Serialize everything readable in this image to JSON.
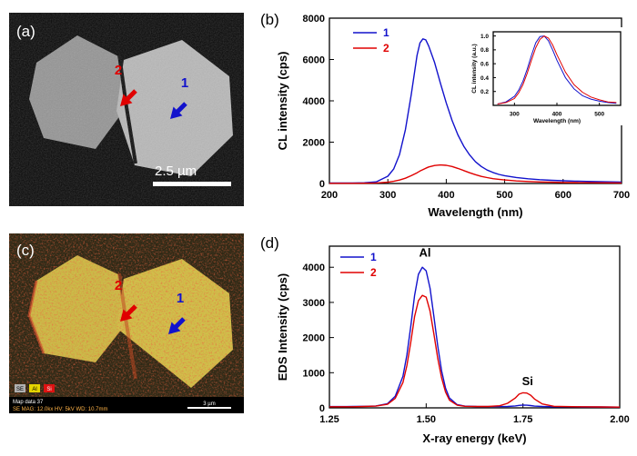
{
  "figure": {
    "panels": {
      "a": {
        "label": "(a)",
        "marker_1": {
          "label": "1",
          "color": "#1212cc"
        },
        "marker_2": {
          "label": "2",
          "color": "#e00000"
        },
        "scale_bar_label": "2.5 µm"
      },
      "b": {
        "label": "(b)"
      },
      "c": {
        "label": "(c)",
        "marker_1": {
          "label": "1",
          "color": "#1212cc"
        },
        "marker_2": {
          "label": "2",
          "color": "#e00000"
        },
        "footer_line_1": "Map data 37",
        "footer_line_2": "SE  MAG: 12.0kx  HV: 5kV  WD: 10.7mm",
        "footer_scale_label": "3 µm",
        "legend_chips": [
          {
            "label": "SE",
            "color": "#b0b0b0"
          },
          {
            "label": "Al",
            "color": "#e6d400"
          },
          {
            "label": "Si",
            "color": "#dd1111"
          }
        ]
      },
      "d": {
        "label": "(d)"
      }
    },
    "accent_colors": {
      "series1": "#1212cc",
      "series2": "#e00000"
    }
  },
  "chart_data": [
    {
      "id": "cl-spectrum",
      "type": "line",
      "title": "",
      "xlabel": "Wavelength (nm)",
      "ylabel": "CL intensity (cps)",
      "xlim": [
        200,
        700
      ],
      "ylim": [
        0,
        8000
      ],
      "xticks": [
        "200",
        "300",
        "400",
        "500",
        "600",
        "700"
      ],
      "yticks": [
        "0",
        "2000",
        "4000",
        "6000",
        "8000"
      ],
      "legend_position": "top-left",
      "series": [
        {
          "name": "1",
          "color": "#1212cc",
          "x": [
            200,
            220,
            240,
            260,
            280,
            300,
            310,
            320,
            330,
            340,
            350,
            355,
            360,
            365,
            370,
            380,
            390,
            400,
            410,
            420,
            430,
            440,
            450,
            460,
            470,
            480,
            490,
            500,
            520,
            540,
            560,
            580,
            600,
            620,
            640,
            660,
            680,
            700
          ],
          "y": [
            20,
            20,
            25,
            35,
            80,
            350,
            700,
            1400,
            2600,
            4300,
            6200,
            6800,
            7000,
            6950,
            6650,
            5850,
            4850,
            3900,
            3050,
            2350,
            1800,
            1380,
            1050,
            820,
            650,
            530,
            440,
            380,
            290,
            230,
            185,
            155,
            130,
            115,
            100,
            90,
            80,
            70
          ]
        },
        {
          "name": "2",
          "color": "#e00000",
          "x": [
            200,
            220,
            240,
            260,
            280,
            300,
            310,
            320,
            330,
            340,
            350,
            355,
            360,
            365,
            370,
            380,
            390,
            400,
            410,
            420,
            430,
            440,
            450,
            460,
            470,
            480,
            490,
            500,
            520,
            540,
            560,
            580,
            600,
            620,
            640,
            660,
            680,
            700
          ],
          "y": [
            8,
            8,
            10,
            14,
            25,
            60,
            105,
            165,
            255,
            380,
            520,
            600,
            670,
            740,
            800,
            870,
            895,
            880,
            820,
            730,
            625,
            520,
            425,
            345,
            285,
            235,
            200,
            170,
            125,
            95,
            75,
            60,
            50,
            45,
            40,
            35,
            30,
            25
          ]
        }
      ]
    },
    {
      "id": "cl-inset",
      "type": "line",
      "title": "",
      "xlabel": "Wavelength (nm)",
      "ylabel": "CL intensity (a.u.)",
      "xlim": [
        250,
        550
      ],
      "ylim": [
        0,
        1.06
      ],
      "xticks": [
        "300",
        "400",
        "500"
      ],
      "yticks": [
        "0.2",
        "0.4",
        "0.6",
        "0.8",
        "1.0"
      ],
      "legend_position": "none",
      "series": [
        {
          "name": "1",
          "color": "#1212cc",
          "x": [
            260,
            280,
            300,
            310,
            320,
            330,
            340,
            350,
            360,
            370,
            380,
            390,
            400,
            420,
            440,
            460,
            480,
            500,
            520,
            540
          ],
          "y": [
            0.02,
            0.05,
            0.13,
            0.22,
            0.35,
            0.52,
            0.72,
            0.9,
            0.99,
            1.0,
            0.93,
            0.8,
            0.65,
            0.4,
            0.24,
            0.14,
            0.09,
            0.06,
            0.04,
            0.03
          ]
        },
        {
          "name": "2",
          "color": "#e00000",
          "x": [
            260,
            280,
            300,
            310,
            320,
            330,
            340,
            350,
            360,
            370,
            380,
            390,
            400,
            420,
            440,
            460,
            480,
            500,
            520,
            540
          ],
          "y": [
            0.02,
            0.04,
            0.1,
            0.18,
            0.3,
            0.46,
            0.65,
            0.83,
            0.95,
            1.0,
            0.97,
            0.87,
            0.73,
            0.48,
            0.3,
            0.19,
            0.12,
            0.08,
            0.05,
            0.04
          ]
        }
      ]
    },
    {
      "id": "eds-spectrum",
      "type": "line",
      "title": "",
      "xlabel": "X-ray energy (keV)",
      "ylabel": "EDS Intensity (cps)",
      "xlim": [
        1.25,
        2.0
      ],
      "ylim": [
        0,
        4600
      ],
      "xticks": [
        "1.25",
        "1.50",
        "1.75",
        "2.00"
      ],
      "yticks": [
        "0",
        "1000",
        "2000",
        "3000",
        "4000"
      ],
      "legend_position": "top-left",
      "annotations": [
        {
          "text": "Al",
          "x": 1.497,
          "y": 4300
        },
        {
          "text": "Si",
          "x": 1.762,
          "y": 640
        }
      ],
      "series": [
        {
          "name": "1",
          "color": "#1212cc",
          "x": [
            1.25,
            1.28,
            1.31,
            1.34,
            1.37,
            1.4,
            1.42,
            1.44,
            1.45,
            1.46,
            1.47,
            1.48,
            1.49,
            1.5,
            1.51,
            1.52,
            1.53,
            1.54,
            1.55,
            1.56,
            1.58,
            1.6,
            1.63,
            1.66,
            1.69,
            1.71,
            1.73,
            1.74,
            1.75,
            1.76,
            1.77,
            1.78,
            1.8,
            1.83,
            1.86,
            1.9,
            1.95,
            2.0
          ],
          "y": [
            35,
            35,
            40,
            45,
            55,
            120,
            330,
            900,
            1500,
            2300,
            3200,
            3800,
            4000,
            3900,
            3400,
            2600,
            1750,
            1050,
            560,
            280,
            90,
            50,
            40,
            35,
            35,
            40,
            55,
            70,
            80,
            75,
            65,
            50,
            40,
            30,
            30,
            25,
            25,
            20
          ]
        },
        {
          "name": "2",
          "color": "#e00000",
          "x": [
            1.25,
            1.28,
            1.31,
            1.34,
            1.37,
            1.4,
            1.42,
            1.44,
            1.45,
            1.46,
            1.47,
            1.48,
            1.49,
            1.5,
            1.51,
            1.52,
            1.53,
            1.54,
            1.55,
            1.56,
            1.58,
            1.6,
            1.63,
            1.66,
            1.69,
            1.71,
            1.73,
            1.74,
            1.75,
            1.76,
            1.77,
            1.78,
            1.8,
            1.83,
            1.86,
            1.9,
            1.95,
            2.0
          ],
          "y": [
            30,
            30,
            32,
            38,
            48,
            100,
            270,
            720,
            1200,
            1850,
            2600,
            3050,
            3200,
            3150,
            2750,
            2100,
            1400,
            850,
            450,
            220,
            75,
            45,
            40,
            40,
            60,
            130,
            280,
            390,
            430,
            420,
            360,
            250,
            110,
            45,
            35,
            30,
            25,
            20
          ]
        }
      ]
    }
  ]
}
